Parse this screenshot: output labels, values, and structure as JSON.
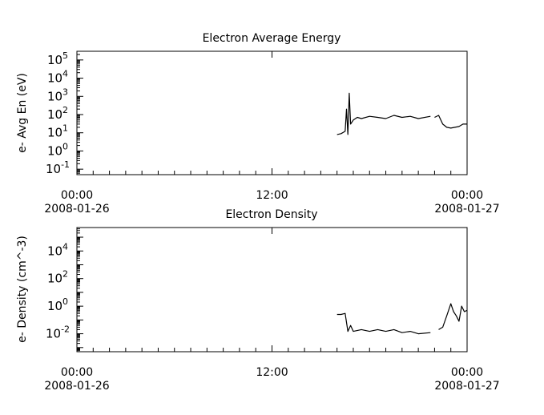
{
  "chart_data": [
    {
      "type": "line",
      "title": "Electron Average Energy",
      "ylabel": "e- Avg En (eV)",
      "xlabel": "",
      "x_range": [
        "2008-01-26T00:00",
        "2008-01-27T00:00"
      ],
      "y_scale": "log",
      "ylim": [
        0.05,
        300000
      ],
      "y_ticks": [
        {
          "base": "10",
          "exp": "-1",
          "value": 0.1
        },
        {
          "base": "10",
          "exp": "0",
          "value": 1
        },
        {
          "base": "10",
          "exp": "1",
          "value": 10
        },
        {
          "base": "10",
          "exp": "2",
          "value": 100
        },
        {
          "base": "10",
          "exp": "3",
          "value": 1000
        },
        {
          "base": "10",
          "exp": "4",
          "value": 10000
        },
        {
          "base": "10",
          "exp": "5",
          "value": 100000
        }
      ],
      "x_ticks": [
        {
          "time": "00:00",
          "date": "2008-01-26",
          "hour": 0
        },
        {
          "time": "12:00",
          "date": "",
          "hour": 12
        },
        {
          "time": "00:00",
          "date": "2008-01-27",
          "hour": 24
        }
      ],
      "series": [
        {
          "x": [
            "2008-01-26T16:00",
            "2008-01-26T16:15",
            "2008-01-26T16:30",
            "2008-01-26T16:35",
            "2008-01-26T16:40",
            "2008-01-26T16:45",
            "2008-01-26T16:50",
            "2008-01-26T17:00",
            "2008-01-26T17:15",
            "2008-01-26T17:30",
            "2008-01-26T18:00",
            "2008-01-26T18:30",
            "2008-01-26T19:00",
            "2008-01-26T19:30",
            "2008-01-26T20:00",
            "2008-01-26T20:30",
            "2008-01-26T21:00",
            "2008-01-26T21:45"
          ],
          "y": [
            8,
            9,
            12,
            200,
            8,
            1500,
            30,
            50,
            70,
            60,
            80,
            70,
            60,
            90,
            70,
            80,
            60,
            80
          ]
        },
        {
          "x": [
            "2008-01-26T22:00",
            "2008-01-26T22:15",
            "2008-01-26T22:30",
            "2008-01-26T22:45",
            "2008-01-26T23:00",
            "2008-01-26T23:15",
            "2008-01-26T23:30",
            "2008-01-26T23:45",
            "2008-01-27T00:00"
          ],
          "y": [
            70,
            90,
            30,
            20,
            18,
            20,
            22,
            30,
            30
          ]
        }
      ]
    },
    {
      "type": "line",
      "title": "Electron Density",
      "ylabel": "e- Density (cm^-3)",
      "xlabel": "",
      "x_range": [
        "2008-01-26T00:00",
        "2008-01-27T00:00"
      ],
      "y_scale": "log",
      "ylim": [
        0.0005,
        500000
      ],
      "y_ticks": [
        {
          "base": "10",
          "exp": "-2",
          "value": 0.01
        },
        {
          "base": "10",
          "exp": "0",
          "value": 1
        },
        {
          "base": "10",
          "exp": "2",
          "value": 100
        },
        {
          "base": "10",
          "exp": "4",
          "value": 10000
        }
      ],
      "x_ticks": [
        {
          "time": "00:00",
          "date": "2008-01-26",
          "hour": 0
        },
        {
          "time": "12:00",
          "date": "",
          "hour": 12
        },
        {
          "time": "00:00",
          "date": "2008-01-27",
          "hour": 24
        }
      ],
      "series": [
        {
          "x": [
            "2008-01-26T16:00",
            "2008-01-26T16:15",
            "2008-01-26T16:30",
            "2008-01-26T16:40",
            "2008-01-26T16:50",
            "2008-01-26T17:00",
            "2008-01-26T17:30",
            "2008-01-26T18:00",
            "2008-01-26T18:30",
            "2008-01-26T19:00",
            "2008-01-26T19:30",
            "2008-01-26T20:00",
            "2008-01-26T20:30",
            "2008-01-26T21:00",
            "2008-01-26T21:45"
          ],
          "y": [
            0.25,
            0.25,
            0.3,
            0.015,
            0.04,
            0.015,
            0.02,
            0.015,
            0.02,
            0.015,
            0.02,
            0.012,
            0.015,
            0.01,
            0.012
          ]
        },
        {
          "x": [
            "2008-01-26T22:15",
            "2008-01-26T22:30",
            "2008-01-26T22:45",
            "2008-01-26T23:00",
            "2008-01-26T23:10",
            "2008-01-26T23:20",
            "2008-01-26T23:30",
            "2008-01-26T23:40",
            "2008-01-26T23:50",
            "2008-01-27T00:00"
          ],
          "y": [
            0.02,
            0.03,
            0.2,
            1.5,
            0.4,
            0.2,
            0.08,
            1.0,
            0.4,
            0.5
          ]
        }
      ]
    }
  ]
}
